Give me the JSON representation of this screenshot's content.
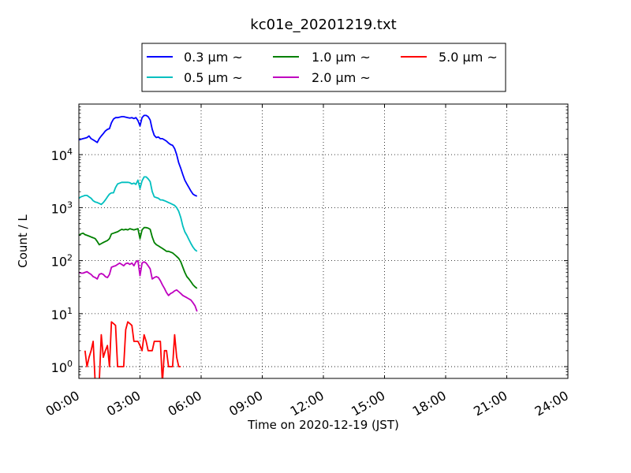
{
  "chart_data": {
    "type": "line",
    "title": "kc01e_20201219.txt",
    "xlabel": "Time on 2020-12-19 (JST)",
    "ylabel": "Count / L",
    "x_unit": "hours",
    "xlim": [
      0,
      24
    ],
    "yscale": "log",
    "ylim": [
      0.6,
      90000
    ],
    "grid": true,
    "legend_position": "top-center",
    "x_ticks": [
      0,
      3,
      6,
      9,
      12,
      15,
      18,
      21,
      24
    ],
    "x_tick_labels": [
      "00:00",
      "03:00",
      "06:00",
      "09:00",
      "12:00",
      "15:00",
      "18:00",
      "21:00",
      "24:00"
    ],
    "y_ticks": [
      1,
      10,
      100,
      1000,
      10000
    ],
    "y_tick_labels": [
      {
        "base": "10",
        "exp": "0"
      },
      {
        "base": "10",
        "exp": "1"
      },
      {
        "base": "10",
        "exp": "2"
      },
      {
        "base": "10",
        "exp": "3"
      },
      {
        "base": "10",
        "exp": "4"
      }
    ],
    "x": [
      0.0,
      0.1,
      0.2,
      0.3,
      0.4,
      0.5,
      0.6,
      0.7,
      0.8,
      0.9,
      1.0,
      1.1,
      1.2,
      1.3,
      1.4,
      1.5,
      1.6,
      1.7,
      1.8,
      1.9,
      2.0,
      2.1,
      2.2,
      2.3,
      2.4,
      2.5,
      2.6,
      2.7,
      2.8,
      2.9,
      3.0,
      3.1,
      3.2,
      3.3,
      3.4,
      3.5,
      3.6,
      3.7,
      3.8,
      3.9,
      4.0,
      4.1,
      4.2,
      4.3,
      4.4,
      4.5,
      4.6,
      4.7,
      4.8,
      4.9,
      5.0,
      5.1,
      5.2,
      5.3,
      5.4,
      5.5,
      5.6,
      5.7,
      5.8
    ],
    "series": [
      {
        "name": "0.3 μm ~",
        "color": "#0000ff",
        "values": [
          19000,
          19500,
          20000,
          20500,
          21000,
          22500,
          20000,
          19000,
          18000,
          17000,
          20000,
          22500,
          25000,
          28000,
          30000,
          31000,
          40000,
          47000,
          50000,
          50000,
          51000,
          52000,
          52000,
          51000,
          50000,
          49000,
          50000,
          48000,
          50000,
          44000,
          35000,
          50000,
          55000,
          55000,
          52000,
          45000,
          30000,
          23000,
          21000,
          21500,
          20000,
          20000,
          19000,
          18000,
          16500,
          15500,
          15000,
          13000,
          10000,
          7000,
          5500,
          4200,
          3300,
          2800,
          2400,
          2050,
          1800,
          1700,
          1650
        ]
      },
      {
        "name": "0.5 μm ~",
        "color": "#00bfbf",
        "values": [
          1500,
          1600,
          1650,
          1700,
          1700,
          1600,
          1500,
          1350,
          1280,
          1250,
          1200,
          1150,
          1250,
          1400,
          1600,
          1800,
          1900,
          1900,
          2400,
          2800,
          2900,
          3000,
          3000,
          3000,
          3000,
          2950,
          2800,
          2900,
          2750,
          3300,
          2300,
          3200,
          3800,
          3800,
          3500,
          3100,
          2000,
          1600,
          1550,
          1500,
          1400,
          1400,
          1350,
          1300,
          1250,
          1200,
          1150,
          1100,
          1000,
          850,
          650,
          450,
          350,
          300,
          250,
          210,
          180,
          160,
          150
        ]
      },
      {
        "name": "1.0 μm ~",
        "color": "#008000",
        "values": [
          300,
          320,
          330,
          310,
          300,
          290,
          280,
          270,
          260,
          230,
          200,
          210,
          220,
          230,
          240,
          260,
          320,
          330,
          340,
          350,
          370,
          390,
          380,
          390,
          380,
          400,
          390,
          380,
          390,
          400,
          260,
          380,
          420,
          420,
          410,
          390,
          280,
          220,
          200,
          190,
          180,
          170,
          160,
          150,
          150,
          145,
          140,
          130,
          120,
          110,
          95,
          75,
          60,
          50,
          45,
          40,
          35,
          32,
          30
        ]
      },
      {
        "name": "2.0 μm ~",
        "color": "#bf00bf",
        "values": [
          60,
          58,
          58,
          60,
          62,
          58,
          55,
          50,
          48,
          45,
          55,
          57,
          55,
          50,
          48,
          55,
          75,
          78,
          80,
          85,
          90,
          85,
          80,
          88,
          90,
          85,
          90,
          80,
          95,
          100,
          52,
          90,
          95,
          90,
          80,
          70,
          45,
          48,
          50,
          48,
          42,
          35,
          30,
          25,
          22,
          24,
          25,
          27,
          28,
          26,
          24,
          22,
          21,
          20,
          19,
          18,
          16,
          14,
          11
        ]
      },
      {
        "name": "5.0 μm ~",
        "color": "#ff0000",
        "values": [
          null,
          null,
          null,
          2,
          1,
          1.5,
          2,
          3,
          0.5,
          null,
          0.5,
          4,
          1.5,
          2,
          2.5,
          1,
          7,
          6.5,
          6,
          1,
          1,
          1,
          1,
          5,
          7,
          6.5,
          6,
          3,
          3,
          3,
          2.5,
          2,
          4,
          3,
          2,
          2,
          2,
          3,
          3,
          3,
          3,
          0.5,
          2,
          2,
          1,
          1,
          1,
          4,
          1.5,
          1,
          1,
          null,
          null,
          null,
          null,
          null,
          null,
          null,
          null
        ]
      }
    ]
  }
}
